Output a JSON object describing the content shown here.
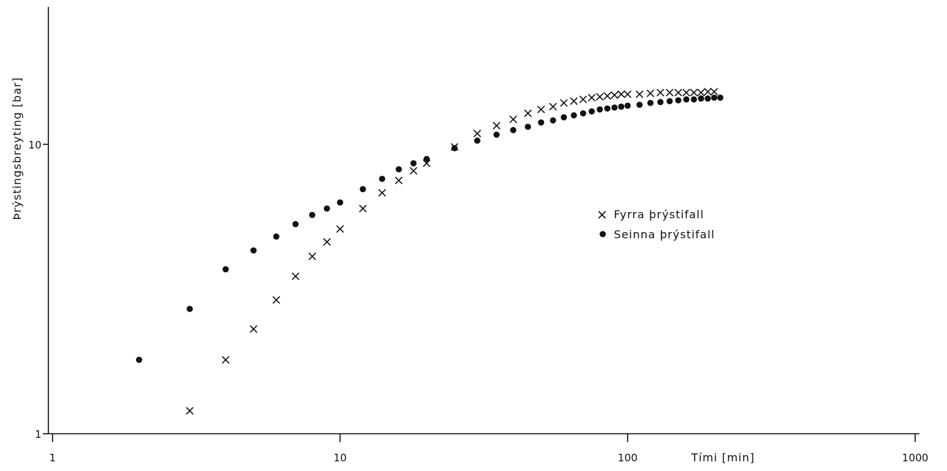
{
  "chart_data": {
    "type": "scatter",
    "title": "",
    "xlabel": "Tími [min]",
    "ylabel": "Þrýstingsbreyting [bar]",
    "xscale": "log",
    "yscale": "log",
    "xlim": [
      1,
      1000
    ],
    "ylim": [
      1,
      100
    ],
    "x_ticks": [
      1,
      10,
      100,
      1000
    ],
    "x_tick_labels": [
      "1",
      "10",
      "100",
      "1000"
    ],
    "y_ticks": [
      1,
      10
    ],
    "y_tick_labels": [
      "1",
      "10"
    ],
    "grid": false,
    "legend_position": "right-center",
    "series": [
      {
        "name": "Fyrra þrýstifall",
        "marker": "x",
        "x": [
          3,
          4,
          5,
          6,
          7,
          8,
          9,
          10,
          12,
          14,
          16,
          18,
          20,
          25,
          30,
          35,
          40,
          45,
          50,
          55,
          60,
          65,
          70,
          75,
          80,
          85,
          90,
          95,
          100,
          110,
          120,
          130,
          140,
          150,
          160,
          170,
          180,
          190,
          200
        ],
        "y": [
          1.2,
          1.8,
          2.3,
          2.9,
          3.5,
          4.1,
          4.6,
          5.1,
          6.0,
          6.8,
          7.5,
          8.1,
          8.6,
          9.8,
          10.9,
          11.6,
          12.2,
          12.8,
          13.2,
          13.5,
          13.9,
          14.1,
          14.3,
          14.5,
          14.6,
          14.7,
          14.8,
          14.9,
          14.9,
          14.9,
          15.0,
          15.1,
          15.1,
          15.1,
          15.1,
          15.1,
          15.1,
          15.2,
          15.2
        ]
      },
      {
        "name": "Seinna þrýstifall",
        "marker": "dot",
        "x": [
          2,
          3,
          4,
          5,
          6,
          7,
          8,
          9,
          10,
          12,
          14,
          16,
          18,
          20,
          25,
          30,
          35,
          40,
          45,
          50,
          55,
          60,
          65,
          70,
          75,
          80,
          85,
          90,
          95,
          100,
          110,
          120,
          130,
          140,
          150,
          160,
          170,
          180,
          190,
          200,
          210
        ],
        "y": [
          1.8,
          2.7,
          3.7,
          4.3,
          4.8,
          5.3,
          5.7,
          6.0,
          6.3,
          7.0,
          7.6,
          8.2,
          8.6,
          8.9,
          9.7,
          10.3,
          10.8,
          11.2,
          11.5,
          11.9,
          12.1,
          12.4,
          12.6,
          12.8,
          13.0,
          13.2,
          13.3,
          13.4,
          13.5,
          13.6,
          13.7,
          13.9,
          14.0,
          14.1,
          14.2,
          14.3,
          14.3,
          14.4,
          14.4,
          14.5,
          14.5
        ]
      }
    ]
  }
}
